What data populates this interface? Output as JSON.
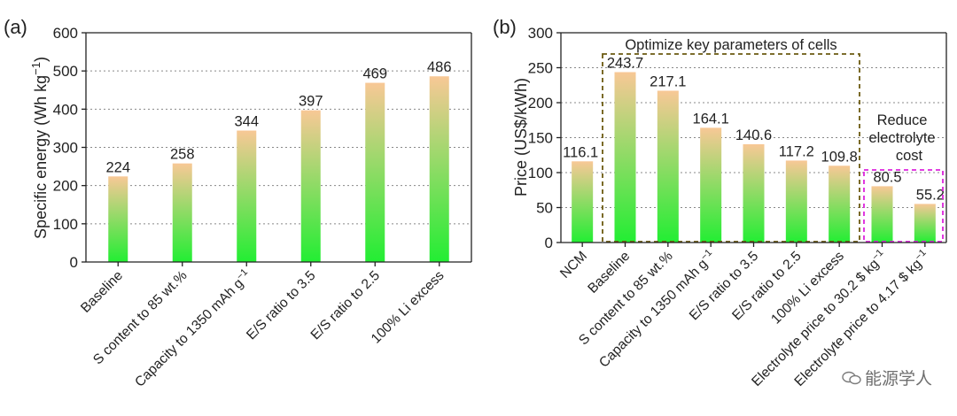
{
  "chart_data": [
    {
      "type": "bar",
      "panel_label": "(a)",
      "title": "",
      "xlabel": "",
      "ylabel": "Specific energy (Wh kg⁻¹)",
      "ylim": [
        0,
        600
      ],
      "yticks": [
        0,
        100,
        200,
        300,
        400,
        500,
        600
      ],
      "grid": true,
      "categories": [
        "Baseline",
        "S content to 85 wt.%",
        "Capacity to 1350 mAh g⁻¹",
        "E/S ratio to 3.5",
        "E/S ratio to 2.5",
        "100% Li excess"
      ],
      "values": [
        224,
        258,
        344,
        397,
        469,
        486
      ],
      "value_labels": [
        "224",
        "258",
        "344",
        "397",
        "469",
        "486"
      ],
      "bar_gradient": [
        "#22ee33",
        "#f8c896"
      ]
    },
    {
      "type": "bar",
      "panel_label": "(b)",
      "title": "",
      "xlabel": "",
      "ylabel": "Price (US$/kWh)",
      "ylim": [
        0,
        300
      ],
      "yticks": [
        0,
        50,
        100,
        150,
        200,
        250,
        300
      ],
      "grid": true,
      "categories": [
        "NCM",
        "Baseline",
        "S content to 85 wt.%",
        "Capacity to 1350 mAh g⁻¹",
        "E/S ratio to 3.5",
        "E/S ratio to 2.5",
        "100% Li excess",
        "Electrolyte price to 30.2 $ kg⁻¹",
        "Electrolyte price to 4.17 $ kg⁻¹"
      ],
      "values": [
        116.1,
        243.7,
        217.1,
        164.1,
        140.6,
        117.2,
        109.8,
        80.5,
        55.2
      ],
      "value_labels": [
        "116.1",
        "243.7",
        "217.1",
        "164.1",
        "140.6",
        "117.2",
        "109.8",
        "80.5",
        "55.2"
      ],
      "bar_gradient": [
        "#22ee33",
        "#f8c896"
      ],
      "annotations": [
        {
          "text": "Optimize key parameters of cells",
          "group": "cells",
          "box_color": "#6b5a10"
        },
        {
          "text_lines": [
            "Reduce",
            "electrolyte",
            "cost"
          ],
          "group": "electrolyte",
          "box_color": "#dd22dd"
        }
      ]
    }
  ],
  "watermark": "能源学人"
}
